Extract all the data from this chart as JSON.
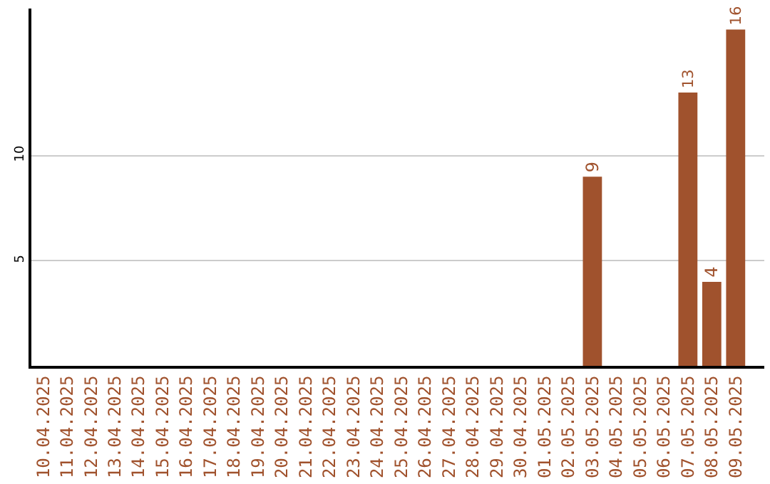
{
  "chart_data": {
    "type": "bar",
    "categories": [
      "10.04.2025",
      "11.04.2025",
      "12.04.2025",
      "13.04.2025",
      "14.04.2025",
      "15.04.2025",
      "16.04.2025",
      "17.04.2025",
      "18.04.2025",
      "19.04.2025",
      "20.04.2025",
      "21.04.2025",
      "22.04.2025",
      "23.04.2025",
      "24.04.2025",
      "25.04.2025",
      "26.04.2025",
      "27.04.2025",
      "28.04.2025",
      "29.04.2025",
      "30.04.2025",
      "01.05.2025",
      "02.05.2025",
      "03.05.2025",
      "04.05.2025",
      "05.05.2025",
      "06.05.2025",
      "07.05.2025",
      "08.05.2025",
      "09.05.2025"
    ],
    "values": [
      0,
      0,
      0,
      0,
      0,
      0,
      0,
      0,
      0,
      0,
      0,
      0,
      0,
      0,
      0,
      0,
      0,
      0,
      0,
      0,
      0,
      0,
      0,
      9,
      0,
      0,
      0,
      13,
      4,
      16
    ],
    "value_labels": [
      null,
      null,
      null,
      null,
      null,
      null,
      null,
      null,
      null,
      null,
      null,
      null,
      null,
      null,
      null,
      null,
      null,
      null,
      null,
      null,
      null,
      null,
      null,
      "9",
      null,
      null,
      null,
      "13",
      "4",
      "16"
    ],
    "color": "#a0522d",
    "ylim": [
      0,
      17
    ],
    "yticks": [
      5,
      10
    ],
    "grid": "y",
    "legend": false
  }
}
